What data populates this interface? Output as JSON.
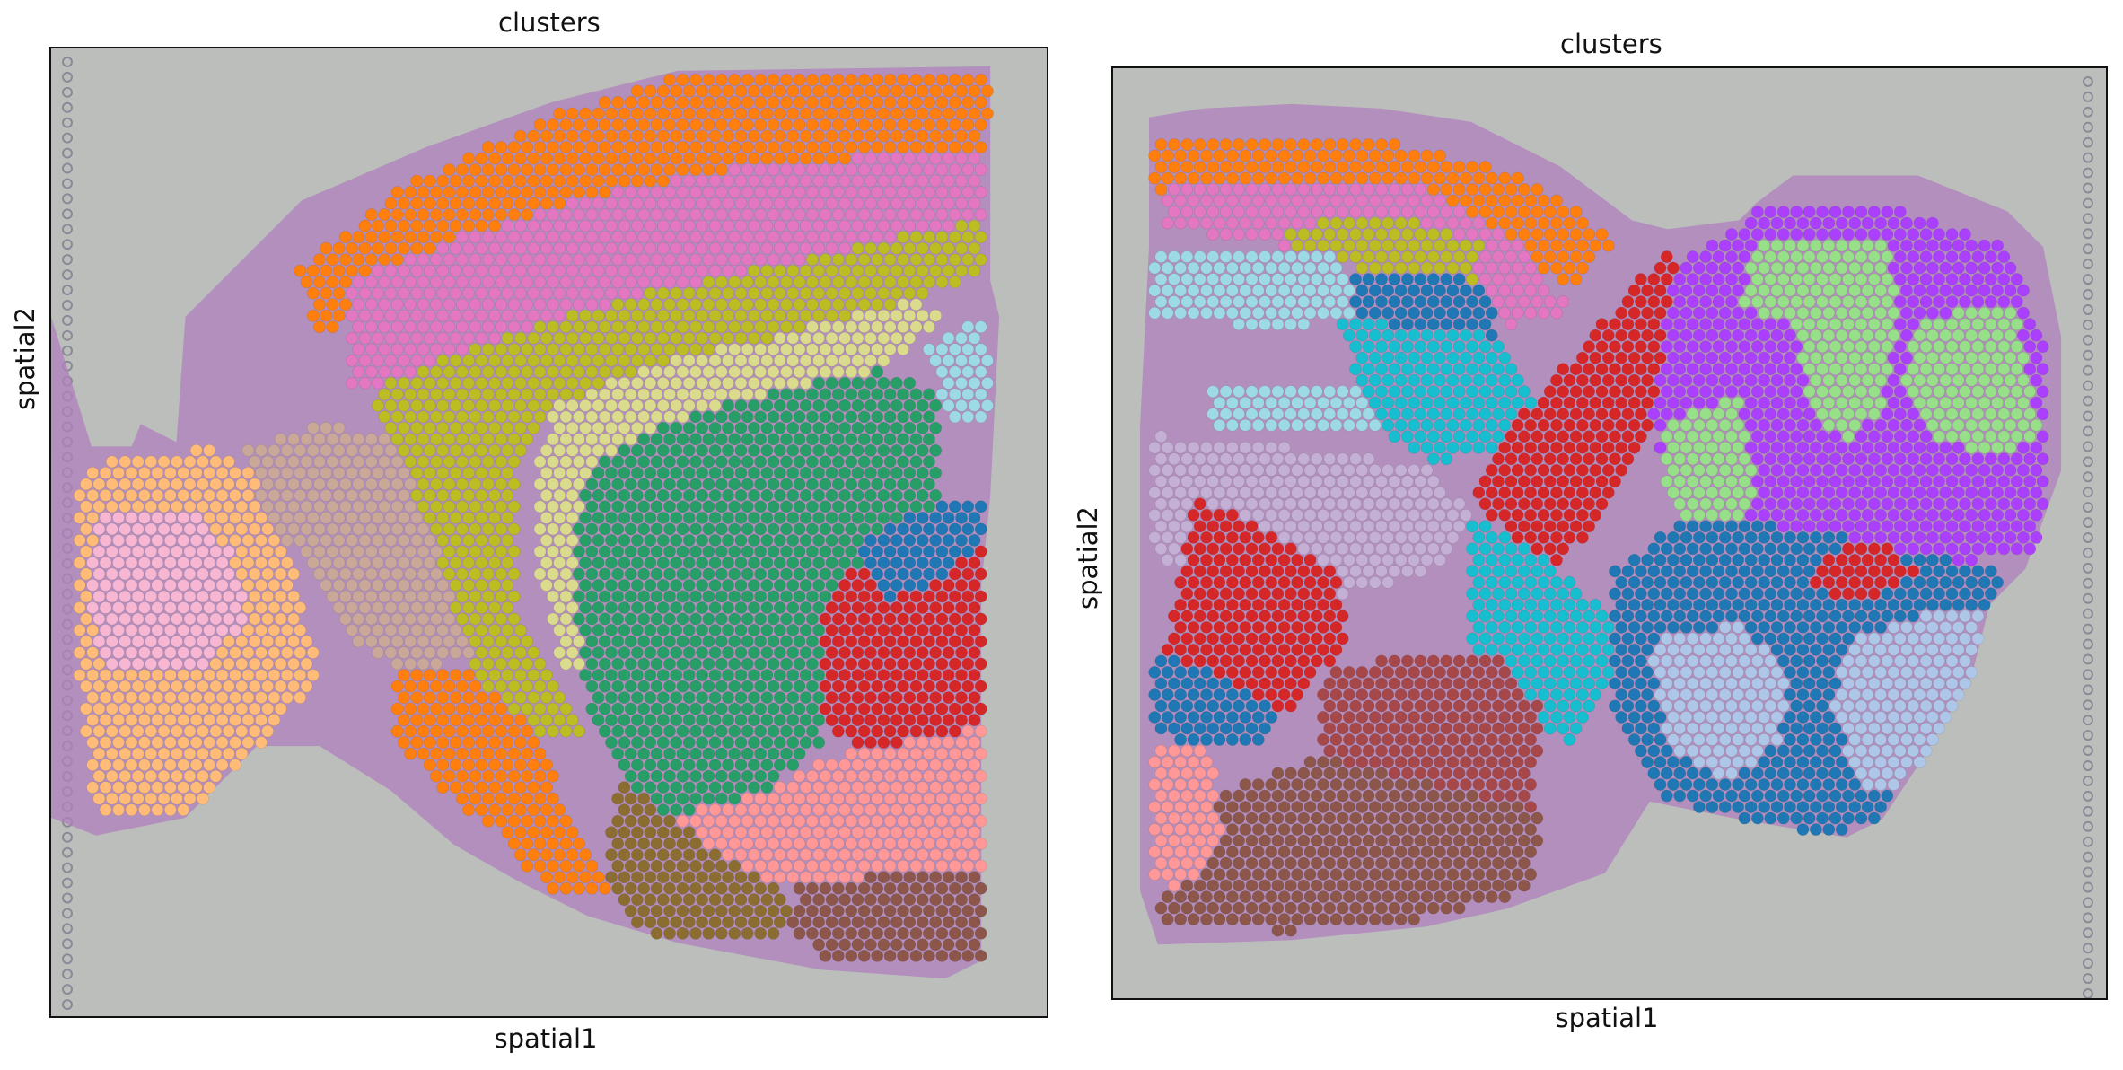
{
  "panels": [
    {
      "title": "clusters",
      "xlabel": "spatial1",
      "ylabel": "spatial2"
    },
    {
      "title": "clusters",
      "xlabel": "spatial1",
      "ylabel": "spatial2"
    }
  ],
  "colors": {
    "background": "#bcbebc",
    "tissue": "#b07fbd",
    "orange": "#ff7f0e",
    "pink": "#e377c2",
    "olive": "#bcbd22",
    "khaki": "#dbdb8d",
    "green": "#279e68",
    "red": "#d62728",
    "blue": "#1f77b4",
    "cyan": "#17becf",
    "light_cyan": "#aec7e8",
    "sky": "#9edae5",
    "peach": "#ffbb78",
    "light_pink": "#f7b6d2",
    "salmon": "#ff9896",
    "brown": "#8c564b",
    "dark_gold": "#8c6d31",
    "purple": "#aa40fc",
    "light_green": "#98df8a",
    "lavender": "#c5b0d5",
    "periwinkle": "#b5bd61"
  }
}
